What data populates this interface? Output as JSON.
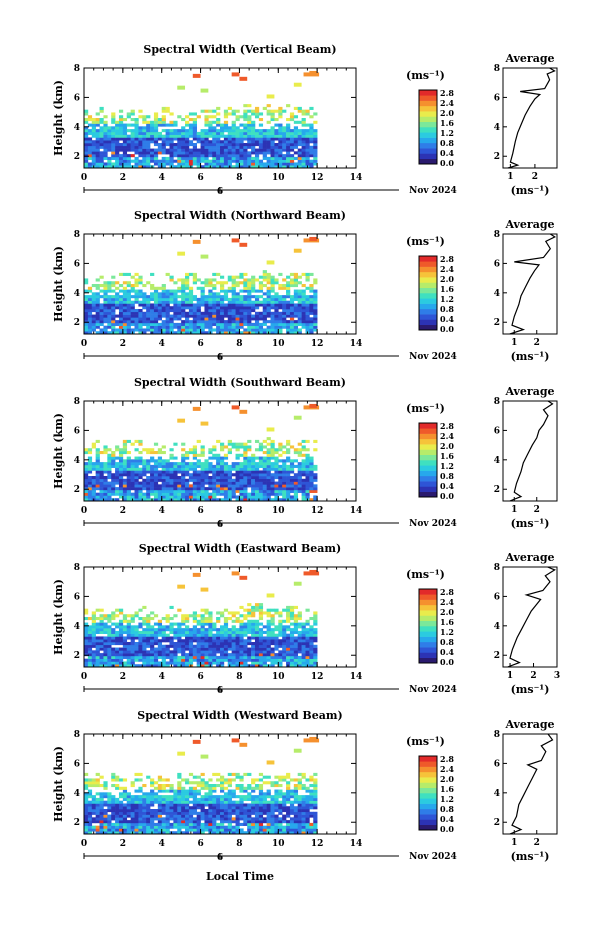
{
  "figure": {
    "xlabel_bottom": "Local Time",
    "day_label": "6",
    "month_label": "Nov 2024"
  },
  "chart_data": [
    {
      "type": "heatmap",
      "title": "Spectral Width (Vertical Beam)",
      "xlabel": "",
      "ylabel": "Height (km)",
      "x_ticks": [
        "0",
        "2",
        "4",
        "6",
        "8",
        "10",
        "12",
        "14"
      ],
      "y_ticks": [
        "2",
        "4",
        "6",
        "8"
      ],
      "xlim": [
        0,
        14
      ],
      "ylim": [
        1.2,
        8
      ],
      "colorbar": {
        "unit": "(ms⁻¹)",
        "labels": [
          "0.0",
          "0.4",
          "0.8",
          "1.2",
          "1.6",
          "2.0",
          "2.4",
          "2.8"
        ]
      },
      "average_profile": {
        "title": "Average",
        "xlabel": "(ms⁻¹)",
        "x_ticks": [
          "1",
          "2"
        ],
        "y_ticks": [
          "2",
          "4",
          "6",
          "8"
        ],
        "xlim": [
          0.7,
          2.9
        ],
        "ylim": [
          1.2,
          8
        ],
        "points": [
          [
            0.9,
            1.2
          ],
          [
            1.3,
            1.4
          ],
          [
            1.0,
            1.6
          ],
          [
            1.1,
            2.2
          ],
          [
            1.2,
            3.0
          ],
          [
            1.3,
            3.6
          ],
          [
            1.45,
            4.2
          ],
          [
            1.6,
            4.8
          ],
          [
            1.8,
            5.4
          ],
          [
            2.0,
            5.9
          ],
          [
            2.2,
            6.2
          ],
          [
            1.4,
            6.4
          ],
          [
            2.4,
            6.6
          ],
          [
            2.6,
            7.2
          ],
          [
            2.5,
            7.6
          ],
          [
            2.8,
            7.8
          ],
          [
            2.6,
            8.0
          ]
        ]
      }
    },
    {
      "type": "heatmap",
      "title": "Spectral Width (Northward Beam)",
      "xlabel": "",
      "ylabel": "Height (km)",
      "x_ticks": [
        "0",
        "2",
        "4",
        "6",
        "8",
        "10",
        "12",
        "14"
      ],
      "y_ticks": [
        "2",
        "4",
        "6",
        "8"
      ],
      "xlim": [
        0,
        14
      ],
      "ylim": [
        1.2,
        8
      ],
      "colorbar": {
        "unit": "(ms⁻¹)",
        "labels": [
          "0.0",
          "0.4",
          "0.8",
          "1.2",
          "1.6",
          "2.0",
          "2.4",
          "2.8"
        ]
      },
      "average_profile": {
        "title": "Average",
        "xlabel": "(ms⁻¹)",
        "x_ticks": [
          "1",
          "2"
        ],
        "y_ticks": [
          "2",
          "4",
          "6",
          "8"
        ],
        "xlim": [
          0.5,
          2.9
        ],
        "ylim": [
          1.2,
          8
        ],
        "points": [
          [
            0.8,
            1.2
          ],
          [
            1.4,
            1.5
          ],
          [
            0.9,
            1.8
          ],
          [
            1.0,
            2.4
          ],
          [
            1.2,
            3.2
          ],
          [
            1.3,
            3.8
          ],
          [
            1.5,
            4.4
          ],
          [
            1.7,
            5.0
          ],
          [
            1.9,
            5.5
          ],
          [
            2.1,
            5.9
          ],
          [
            1.0,
            6.1
          ],
          [
            2.3,
            6.4
          ],
          [
            2.6,
            7.0
          ],
          [
            2.4,
            7.5
          ],
          [
            2.8,
            7.8
          ],
          [
            2.6,
            8.0
          ]
        ]
      }
    },
    {
      "type": "heatmap",
      "title": "Spectral Width (Southward Beam)",
      "xlabel": "",
      "ylabel": "Height (km)",
      "x_ticks": [
        "0",
        "2",
        "4",
        "6",
        "8",
        "10",
        "12",
        "14"
      ],
      "y_ticks": [
        "2",
        "4",
        "6",
        "8"
      ],
      "xlim": [
        0,
        14
      ],
      "ylim": [
        1.2,
        8
      ],
      "colorbar": {
        "unit": "(ms⁻¹)",
        "labels": [
          "0.0",
          "0.4",
          "0.8",
          "1.2",
          "1.6",
          "2.0",
          "2.4",
          "2.8"
        ]
      },
      "average_profile": {
        "title": "Average",
        "xlabel": "(ms⁻¹)",
        "x_ticks": [
          "1",
          "2"
        ],
        "y_ticks": [
          "2",
          "4",
          "6",
          "8"
        ],
        "xlim": [
          0.5,
          2.9
        ],
        "ylim": [
          1.2,
          8
        ],
        "points": [
          [
            0.8,
            1.2
          ],
          [
            1.3,
            1.5
          ],
          [
            1.0,
            1.8
          ],
          [
            1.1,
            2.4
          ],
          [
            1.3,
            3.2
          ],
          [
            1.4,
            3.8
          ],
          [
            1.6,
            4.4
          ],
          [
            1.8,
            5.0
          ],
          [
            2.0,
            5.5
          ],
          [
            2.1,
            6.0
          ],
          [
            2.3,
            6.4
          ],
          [
            2.5,
            7.0
          ],
          [
            2.3,
            7.4
          ],
          [
            2.7,
            7.8
          ],
          [
            2.5,
            8.0
          ]
        ]
      }
    },
    {
      "type": "heatmap",
      "title": "Spectral Width (Eastward Beam)",
      "xlabel": "",
      "ylabel": "Height (km)",
      "x_ticks": [
        "0",
        "2",
        "4",
        "6",
        "8",
        "10",
        "12",
        "14"
      ],
      "y_ticks": [
        "2",
        "4",
        "6",
        "8"
      ],
      "xlim": [
        0,
        14
      ],
      "ylim": [
        1.2,
        8
      ],
      "colorbar": {
        "unit": "(ms⁻¹)",
        "labels": [
          "0.0",
          "0.4",
          "0.8",
          "1.2",
          "1.6",
          "2.0",
          "2.4",
          "2.8"
        ]
      },
      "average_profile": {
        "title": "Average",
        "xlabel": "(ms⁻¹)",
        "x_ticks": [
          "1",
          "2",
          "3"
        ],
        "y_ticks": [
          "2",
          "4",
          "6",
          "8"
        ],
        "xlim": [
          0.7,
          3.0
        ],
        "ylim": [
          1.2,
          8
        ],
        "points": [
          [
            0.9,
            1.2
          ],
          [
            1.4,
            1.5
          ],
          [
            1.0,
            1.8
          ],
          [
            1.1,
            2.4
          ],
          [
            1.3,
            3.2
          ],
          [
            1.5,
            3.8
          ],
          [
            1.7,
            4.4
          ],
          [
            1.9,
            5.0
          ],
          [
            2.1,
            5.4
          ],
          [
            2.3,
            5.8
          ],
          [
            1.7,
            6.1
          ],
          [
            2.4,
            6.4
          ],
          [
            2.7,
            7.0
          ],
          [
            2.5,
            7.4
          ],
          [
            2.9,
            7.8
          ],
          [
            2.6,
            8.0
          ]
        ]
      }
    },
    {
      "type": "heatmap",
      "title": "Spectral Width (Westward Beam)",
      "xlabel": "Local Time",
      "ylabel": "Height (km)",
      "x_ticks": [
        "0",
        "2",
        "4",
        "6",
        "8",
        "10",
        "12",
        "14"
      ],
      "y_ticks": [
        "2",
        "4",
        "6",
        "8"
      ],
      "xlim": [
        0,
        14
      ],
      "ylim": [
        1.2,
        8
      ],
      "colorbar": {
        "unit": "(ms⁻¹)",
        "labels": [
          "0.0",
          "0.4",
          "0.8",
          "1.2",
          "1.6",
          "2.0",
          "2.4",
          "2.8"
        ]
      },
      "average_profile": {
        "title": "Average",
        "xlabel": "(ms⁻¹)",
        "x_ticks": [
          "1",
          "2"
        ],
        "y_ticks": [
          "2",
          "4",
          "6",
          "8"
        ],
        "xlim": [
          0.5,
          2.9
        ],
        "ylim": [
          1.2,
          8
        ],
        "points": [
          [
            0.8,
            1.2
          ],
          [
            1.3,
            1.5
          ],
          [
            0.9,
            1.8
          ],
          [
            1.1,
            2.4
          ],
          [
            1.2,
            3.2
          ],
          [
            1.4,
            3.8
          ],
          [
            1.6,
            4.4
          ],
          [
            1.8,
            5.0
          ],
          [
            2.0,
            5.6
          ],
          [
            1.6,
            5.9
          ],
          [
            2.2,
            6.2
          ],
          [
            2.4,
            6.8
          ],
          [
            2.2,
            7.2
          ],
          [
            2.7,
            7.6
          ],
          [
            2.5,
            8.0
          ]
        ]
      }
    }
  ]
}
